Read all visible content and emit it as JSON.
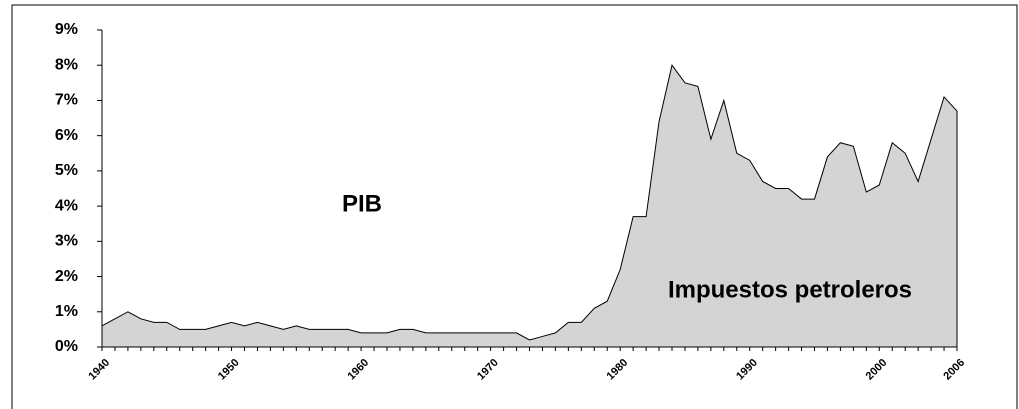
{
  "chart_data": {
    "type": "area",
    "x": [
      1940,
      1941,
      1942,
      1943,
      1944,
      1945,
      1946,
      1947,
      1948,
      1949,
      1950,
      1951,
      1952,
      1953,
      1954,
      1955,
      1956,
      1957,
      1958,
      1959,
      1960,
      1961,
      1962,
      1963,
      1964,
      1965,
      1966,
      1967,
      1968,
      1969,
      1970,
      1971,
      1972,
      1973,
      1974,
      1975,
      1976,
      1977,
      1978,
      1979,
      1980,
      1981,
      1982,
      1983,
      1984,
      1985,
      1986,
      1987,
      1988,
      1989,
      1990,
      1991,
      1992,
      1993,
      1994,
      1995,
      1996,
      1997,
      1998,
      1999,
      2000,
      2001,
      2002,
      2003,
      2004,
      2005,
      2006
    ],
    "y": [
      0.6,
      0.8,
      1.0,
      0.8,
      0.7,
      0.7,
      0.5,
      0.5,
      0.5,
      0.6,
      0.7,
      0.6,
      0.7,
      0.6,
      0.5,
      0.6,
      0.5,
      0.5,
      0.5,
      0.5,
      0.4,
      0.4,
      0.4,
      0.5,
      0.5,
      0.4,
      0.4,
      0.4,
      0.4,
      0.4,
      0.4,
      0.4,
      0.4,
      0.2,
      0.3,
      0.4,
      0.7,
      0.7,
      1.1,
      1.3,
      2.2,
      3.7,
      3.7,
      6.4,
      8.0,
      7.5,
      7.4,
      5.9,
      7.0,
      5.5,
      5.3,
      4.7,
      4.5,
      4.5,
      4.2,
      4.2,
      5.4,
      5.8,
      5.7,
      4.4,
      4.6,
      5.8,
      5.5,
      4.7,
      5.9,
      7.1,
      6.7
    ],
    "color": "#d4d4d4",
    "xlim": [
      1940,
      2006
    ],
    "xticks": [
      1940,
      1950,
      1960,
      1970,
      1980,
      1990,
      2000,
      2006
    ],
    "ylim": [
      0,
      9
    ],
    "yticks": [
      {
        "value": 0,
        "label": "0%"
      },
      {
        "value": 1,
        "label": "1%"
      },
      {
        "value": 2,
        "label": "2%"
      },
      {
        "value": 3,
        "label": "3%"
      },
      {
        "value": 4,
        "label": "4%"
      },
      {
        "value": 5,
        "label": "5%"
      },
      {
        "value": 6,
        "label": "6%"
      },
      {
        "value": 7,
        "label": "7%"
      },
      {
        "value": 8,
        "label": "8%"
      },
      {
        "value": 9,
        "label": "9%"
      }
    ],
    "annotations": [
      "PIB",
      "Impuestos petroleros"
    ]
  }
}
